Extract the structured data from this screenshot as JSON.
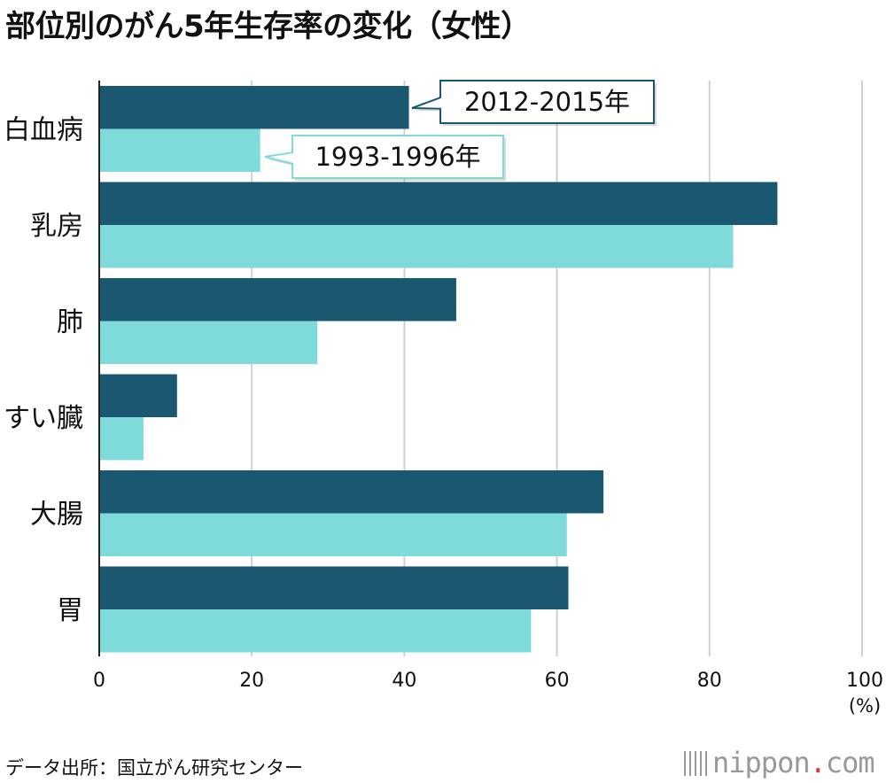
{
  "title": "部位別のがん5年生存率の変化（女性）",
  "source": "データ出所：国立がん研究センター",
  "brand": {
    "name": "nippon",
    "dot": ".",
    "tld": "com"
  },
  "colors": {
    "recent": "#1a5872",
    "past": "#7edbd9",
    "grid": "#d0d0d0",
    "axis": "#222222"
  },
  "chart_data": {
    "type": "bar",
    "orientation": "horizontal",
    "title": "部位別のがん5年生存率の変化（女性）",
    "xlabel": "",
    "ylabel": "",
    "unit_label": "(%)",
    "xlim": [
      0,
      100
    ],
    "xticks": [
      0,
      20,
      40,
      60,
      80,
      100
    ],
    "categories": [
      "白血病",
      "乳房",
      "肺",
      "すい臓",
      "大腸",
      "胃"
    ],
    "series": [
      {
        "name": "2012-2015年",
        "values": [
          40.6,
          88.9,
          46.8,
          10.2,
          66.1,
          61.5
        ]
      },
      {
        "name": "1993-1996年",
        "values": [
          21.1,
          83.1,
          28.6,
          5.8,
          61.3,
          56.6
        ]
      }
    ],
    "legend_placement": "inline callouts on first category"
  }
}
